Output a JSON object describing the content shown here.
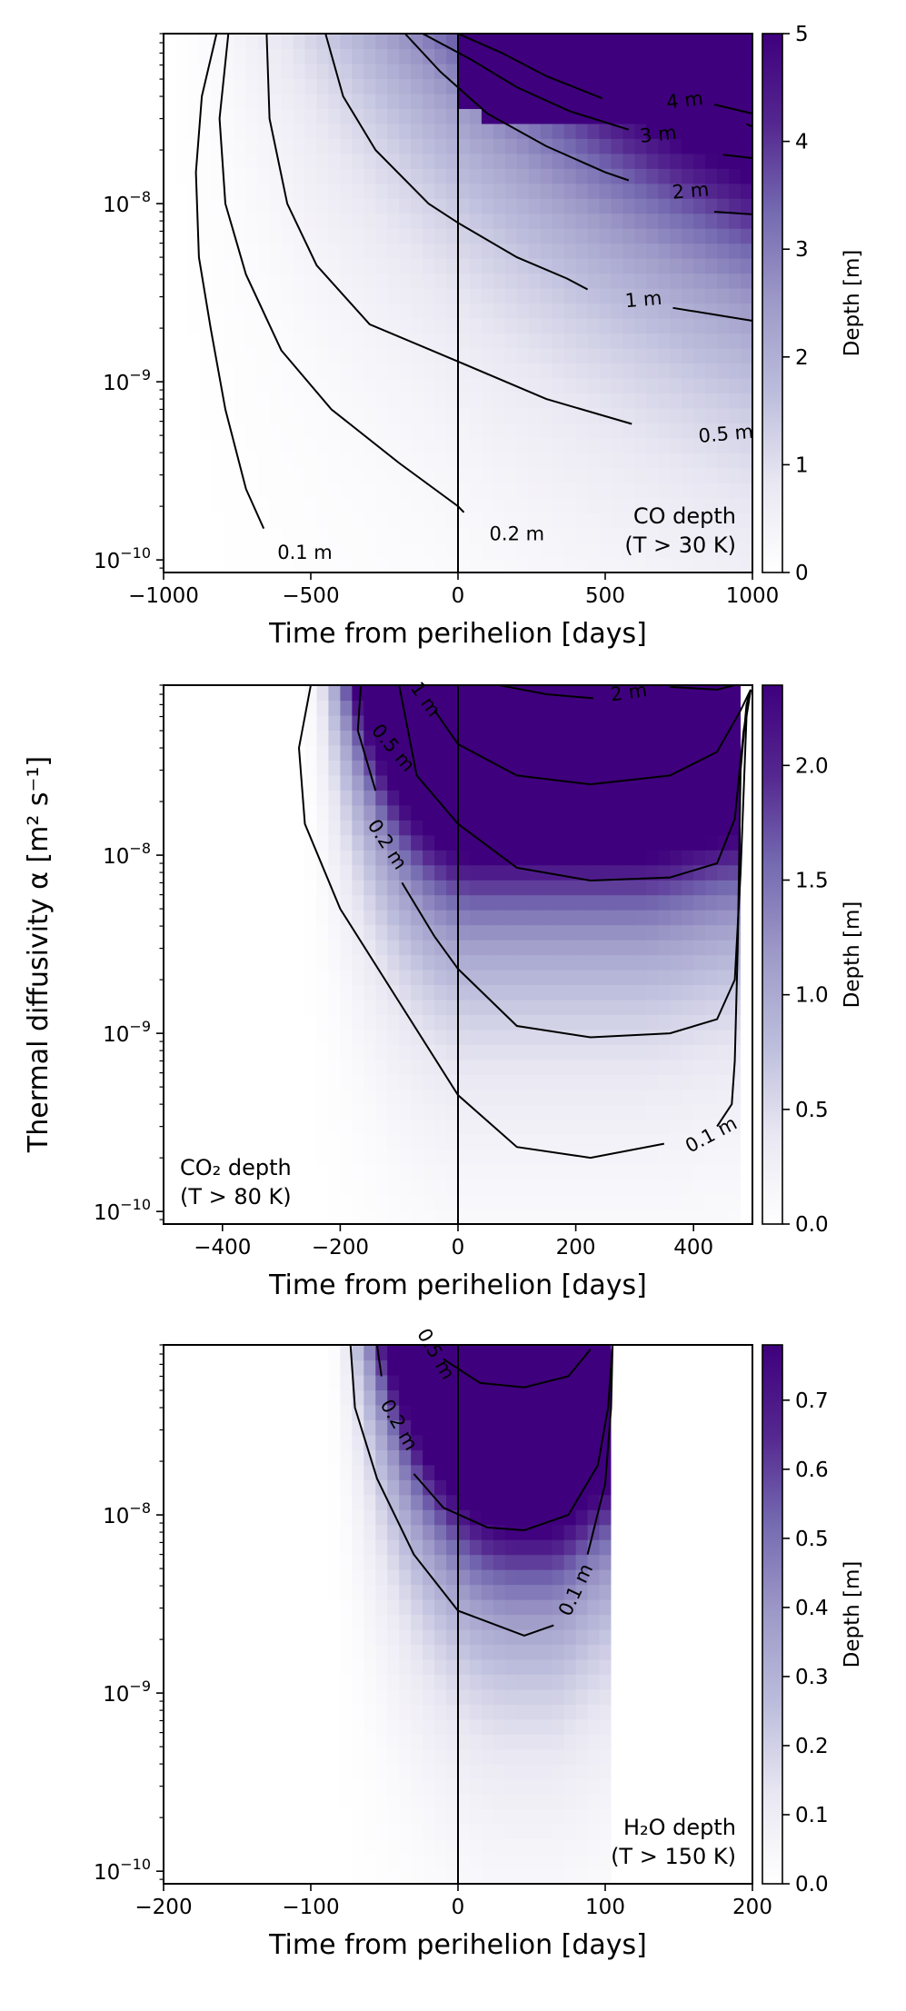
{
  "figure": {
    "ylabel": "Thermal diffusivity α [m² s⁻¹]",
    "colormap": [
      "#ffffff",
      "#e9e7f2",
      "#bcbddc",
      "#9e9ac8",
      "#756bb1",
      "#54278f",
      "#3f007d"
    ]
  },
  "chart_data": [
    {
      "type": "heatmap",
      "title": "",
      "annotation_lines": [
        "CO depth",
        "(T > 30 K)"
      ],
      "annotation_position": "bottom-right",
      "xlabel": "Time from perihelion [days]",
      "ylabel": "",
      "xlim": [
        -1000,
        1000
      ],
      "ylim": [
        8.5e-11,
        9e-08
      ],
      "yscale": "log",
      "xticks": [
        -1000,
        -500,
        0,
        500,
        1000
      ],
      "xtick_labels": [
        "−1000",
        "−500",
        "0",
        "500",
        "1000"
      ],
      "yticks": [
        1e-10,
        1e-09,
        1e-08
      ],
      "ytick_labels": [
        "10",
        "10",
        "10"
      ],
      "ytick_exponents": [
        "−10",
        "−9",
        "−8"
      ],
      "vline_x": 0,
      "colorbar": {
        "label": "Depth [m]",
        "min": 0,
        "max": 5,
        "ticks": [
          0,
          1,
          2,
          3,
          4,
          5
        ],
        "tick_labels": [
          "0",
          "1",
          "2",
          "3",
          "4",
          "5"
        ]
      },
      "field": {
        "model": "CO",
        "sat_x": 1000,
        "d_max": 5
      },
      "contours": [
        {
          "label": "0.1 m",
          "points": [
            [
              -820,
              9e-08
            ],
            [
              -870,
              4e-08
            ],
            [
              -890,
              1.5e-08
            ],
            [
              -880,
              5e-09
            ],
            [
              -840,
              2e-09
            ],
            [
              -790,
              7e-10
            ],
            [
              -720,
              2.5e-10
            ],
            [
              -660,
              1.5e-10
            ]
          ],
          "label_at": [
            -520,
            1.1e-10
          ],
          "label_rot": 0
        },
        {
          "label": "0.2 m",
          "points": [
            [
              -780,
              9e-08
            ],
            [
              -810,
              3e-08
            ],
            [
              -790,
              1e-08
            ],
            [
              -720,
              4e-09
            ],
            [
              -600,
              1.5e-09
            ],
            [
              -430,
              7e-10
            ],
            [
              -200,
              3.5e-10
            ],
            [
              0,
              2e-10
            ],
            [
              20,
              1.85e-10
            ]
          ],
          "label_at": [
            200,
            1.4e-10
          ],
          "label_rot": 0
        },
        {
          "label": "0.5 m",
          "points": [
            [
              -650,
              9e-08
            ],
            [
              -640,
              3e-08
            ],
            [
              -580,
              1e-08
            ],
            [
              -480,
              4.5e-09
            ],
            [
              -300,
              2.1e-09
            ],
            [
              0,
              1.3e-09
            ],
            [
              300,
              8e-10
            ],
            [
              590,
              5.8e-10
            ]
          ],
          "label_at": [
            910,
            5.1e-10
          ],
          "label_rot": -5
        },
        {
          "label": "1 m",
          "points": [
            [
              -450,
              9e-08
            ],
            [
              -390,
              4e-08
            ],
            [
              -280,
              2e-08
            ],
            [
              -100,
              1e-08
            ],
            [
              0,
              7.8e-09
            ],
            [
              200,
              5e-09
            ],
            [
              370,
              3.8e-09
            ],
            [
              440,
              3.3e-09
            ]
          ],
          "label_at": [
            630,
            2.9e-09
          ],
          "label_rot": -5
        },
        {
          "label": "2 m",
          "points": [
            [
              -180,
              9e-08
            ],
            [
              -60,
              5.5e-08
            ],
            [
              100,
              3.2e-08
            ],
            [
              300,
              2.1e-08
            ],
            [
              500,
              1.5e-08
            ],
            [
              580,
              1.35e-08
            ]
          ],
          "label_at": [
            790,
            1.18e-08
          ],
          "label_rot": -5
        },
        {
          "label": "3 m",
          "points": [
            [
              -120,
              9e-08
            ],
            [
              40,
              6.5e-08
            ],
            [
              200,
              4.5e-08
            ],
            [
              380,
              3.3e-08
            ],
            [
              580,
              2.6e-08
            ]
          ],
          "label_at": [
            680,
            2.45e-08
          ],
          "label_rot": -6
        },
        {
          "label": "4 m",
          "points": [
            [
              0,
              9e-08
            ],
            [
              150,
              7e-08
            ],
            [
              300,
              5.2e-08
            ],
            [
              490,
              3.9e-08
            ]
          ],
          "label_at": [
            770,
            3.8e-08
          ],
          "label_rot": -7
        },
        {
          "segments_only": true,
          "points": [
            [
              980,
              2.8e-08
            ],
            [
              1000,
              2.7e-08
            ]
          ]
        },
        {
          "segments_only": true,
          "points": [
            [
              900,
              1.88e-08
            ],
            [
              1000,
              1.8e-08
            ]
          ]
        },
        {
          "segments_only": true,
          "points": [
            [
              870,
              9e-09
            ],
            [
              1000,
              8.7e-09
            ]
          ]
        },
        {
          "segments_only": true,
          "points": [
            [
              730,
              2.6e-09
            ],
            [
              1000,
              2.2e-09
            ]
          ]
        },
        {
          "segments_only": true,
          "points": [
            [
              870,
              3.6e-08
            ],
            [
              1000,
              3.2e-08
            ]
          ]
        }
      ]
    },
    {
      "type": "heatmap",
      "title": "",
      "annotation_lines": [
        "CO₂ depth",
        "(T > 80 K)"
      ],
      "annotation_position": "bottom-left",
      "xlabel": "Time from perihelion [days]",
      "ylabel": "Thermal diffusivity α [m² s⁻¹]",
      "xlim": [
        -500,
        500
      ],
      "ylim": [
        8.5e-11,
        9e-08
      ],
      "yscale": "log",
      "xticks": [
        -400,
        -200,
        0,
        200,
        400
      ],
      "xtick_labels": [
        "−400",
        "−200",
        "0",
        "200",
        "400"
      ],
      "yticks": [
        1e-10,
        1e-09,
        1e-08
      ],
      "ytick_labels": [
        "10",
        "10",
        "10"
      ],
      "ytick_exponents": [
        "−10",
        "−9",
        "−8"
      ],
      "vline_x": 0,
      "colorbar": {
        "label": "Depth [m]",
        "min": 0,
        "max": 2.35,
        "ticks": [
          0,
          0.5,
          1.0,
          1.5,
          2.0
        ],
        "tick_labels": [
          "0.0",
          "0.5",
          "1.0",
          "1.5",
          "2.0"
        ]
      },
      "field": {
        "model": "CO2",
        "t_end": 480,
        "d_max": 2.35
      },
      "contours": [
        {
          "label": "0.1 m",
          "points": [
            [
              -250,
              9e-08
            ],
            [
              -270,
              4e-08
            ],
            [
              -260,
              1.5e-08
            ],
            [
              -200,
              5e-09
            ],
            [
              -100,
              1.5e-09
            ],
            [
              0,
              4.5e-10
            ],
            [
              100,
              2.3e-10
            ],
            [
              225,
              2e-10
            ],
            [
              350,
              2.4e-10
            ]
          ],
          "label_at": [
            430,
            2.7e-10
          ],
          "label_rot": -28
        },
        {
          "segments_only": true,
          "points": [
            [
              440,
              3e-10
            ],
            [
              465,
              4e-10
            ],
            [
              470,
              7e-10
            ],
            [
              475,
              3e-09
            ],
            [
              480,
              3e-08
            ],
            [
              490,
              7e-08
            ],
            [
              497,
              8.5e-08
            ]
          ]
        },
        {
          "label": "0.2 m",
          "points": [
            [
              -165,
              9e-08
            ],
            [
              -170,
              5e-08
            ],
            [
              -140,
              2.3e-08
            ]
          ],
          "label_at": [
            -120,
            1.15e-08
          ],
          "label_rot": 57
        },
        {
          "segments_only": true,
          "points": [
            [
              -95,
              7e-09
            ],
            [
              -40,
              3.5e-09
            ],
            [
              0,
              2.3e-09
            ],
            [
              100,
              1.1e-09
            ],
            [
              225,
              9.5e-10
            ],
            [
              360,
              1e-09
            ],
            [
              440,
              1.2e-09
            ],
            [
              470,
              2e-09
            ],
            [
              480,
              8e-09
            ],
            [
              490,
              6e-08
            ],
            [
              497,
              8.5e-08
            ]
          ]
        },
        {
          "label": "0.5 m",
          "points": [
            [
              -170,
              9e-08
            ]
          ],
          "label_at": [
            -110,
            4e-08
          ],
          "label_rot": 50
        },
        {
          "segments_only": true,
          "points": [
            [
              -100,
              9e-08
            ],
            [
              -70,
              2.8e-08
            ],
            [
              0,
              1.5e-08
            ],
            [
              100,
              8.5e-09
            ],
            [
              225,
              7.2e-09
            ],
            [
              360,
              7.5e-09
            ],
            [
              440,
              9e-09
            ],
            [
              470,
              1.6e-08
            ],
            [
              485,
              5e-08
            ],
            [
              497,
              8.5e-08
            ]
          ]
        },
        {
          "label": "1 m",
          "points": [
            [
              -60,
              9e-08
            ]
          ],
          "label_at": [
            -55,
            7.5e-08
          ],
          "label_rot": 55
        },
        {
          "segments_only": true,
          "points": [
            [
              -40,
              6.5e-08
            ],
            [
              0,
              4.2e-08
            ],
            [
              100,
              2.8e-08
            ],
            [
              225,
              2.5e-08
            ],
            [
              360,
              2.8e-08
            ],
            [
              440,
              3.8e-08
            ],
            [
              480,
              6.5e-08
            ],
            [
              497,
              8.5e-08
            ]
          ]
        },
        {
          "label": "2 m",
          "points": [
            [
              70,
              9e-08
            ],
            [
              150,
              8e-08
            ],
            [
              230,
              7.6e-08
            ]
          ],
          "label_at": [
            290,
            8.2e-08
          ],
          "label_rot": -8
        },
        {
          "segments_only": true,
          "points": [
            [
              360,
              8.8e-08
            ],
            [
              440,
              8.5e-08
            ],
            [
              470,
              9e-08
            ]
          ]
        }
      ]
    },
    {
      "type": "heatmap",
      "title": "",
      "annotation_lines": [
        "H₂O depth",
        "(T > 150 K)"
      ],
      "annotation_position": "bottom-right",
      "xlabel": "Time from perihelion [days]",
      "ylabel": "",
      "xlim": [
        -200,
        200
      ],
      "ylim": [
        8.5e-11,
        9e-08
      ],
      "yscale": "log",
      "xticks": [
        -200,
        -100,
        0,
        100,
        200
      ],
      "xtick_labels": [
        "−200",
        "−100",
        "0",
        "100",
        "200"
      ],
      "yticks": [
        1e-10,
        1e-09,
        1e-08
      ],
      "ytick_labels": [
        "10",
        "10",
        "10"
      ],
      "ytick_exponents": [
        "−10",
        "−9",
        "−8"
      ],
      "vline_x": 0,
      "colorbar": {
        "label": "Depth [m]",
        "min": 0,
        "max": 0.78,
        "ticks": [
          0,
          0.1,
          0.2,
          0.3,
          0.4,
          0.5,
          0.6,
          0.7
        ],
        "tick_labels": [
          "0.0",
          "0.1",
          "0.2",
          "0.3",
          "0.4",
          "0.5",
          "0.6",
          "0.7"
        ]
      },
      "field": {
        "model": "H2O",
        "t_start": -90,
        "t_end": 105,
        "d_max": 0.78
      },
      "contours": [
        {
          "label": "0.1 m",
          "points": [
            [
              -73,
              9e-08
            ],
            [
              -70,
              4e-08
            ],
            [
              -55,
              1.6e-08
            ],
            [
              -30,
              6e-09
            ],
            [
              0,
              2.9e-09
            ],
            [
              45,
              2.1e-09
            ],
            [
              65,
              2.4e-09
            ]
          ],
          "label_at": [
            80,
            3.8e-09
          ],
          "label_rot": -65
        },
        {
          "segments_only": true,
          "points": [
            [
              88,
              6e-09
            ],
            [
              100,
              1.5e-08
            ],
            [
              104,
              4e-08
            ],
            [
              105,
              9e-08
            ]
          ]
        },
        {
          "label": "0.2 m",
          "points": [
            [
              -55,
              9e-08
            ],
            [
              -52,
              6e-08
            ]
          ],
          "label_at": [
            -40,
            3.2e-08
          ],
          "label_rot": 60
        },
        {
          "segments_only": true,
          "points": [
            [
              -30,
              1.7e-08
            ],
            [
              -10,
              1.1e-08
            ],
            [
              20,
              8.5e-09
            ],
            [
              45,
              8.2e-09
            ],
            [
              75,
              1e-08
            ],
            [
              95,
              1.9e-08
            ],
            [
              102,
              4e-08
            ],
            [
              105,
              9e-08
            ]
          ]
        },
        {
          "label": "0.5 m",
          "points": [
            [
              -25,
              9e-08
            ]
          ],
          "label_at": [
            -15,
            8e-08
          ],
          "label_rot": 60
        },
        {
          "segments_only": true,
          "points": [
            [
              -10,
              7.5e-08
            ],
            [
              15,
              5.5e-08
            ],
            [
              45,
              5.2e-08
            ],
            [
              75,
              6e-08
            ],
            [
              90,
              8.5e-08
            ]
          ]
        }
      ]
    }
  ]
}
